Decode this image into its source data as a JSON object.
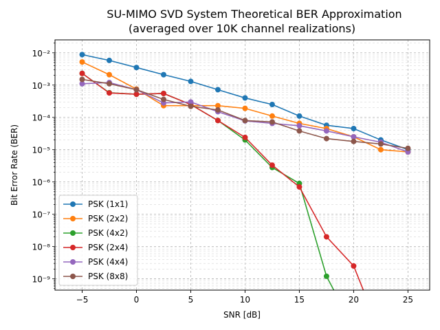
{
  "chart_data": {
    "type": "line",
    "title_line1": "SU-MIMO SVD System Theoretical BER Approximation",
    "title_line2": "(averaged over 10K channel realizations)",
    "xlabel": "SNR [dB]",
    "ylabel": "Bit Error Rate (BER)",
    "x_scale": "linear",
    "y_scale": "log",
    "xlim": [
      -7.5,
      27.0
    ],
    "ylim_exp": [
      -9.35,
      -1.6
    ],
    "x_ticks": [
      -5,
      0,
      5,
      10,
      15,
      20,
      25
    ],
    "x_tick_labels": [
      "−5",
      "0",
      "5",
      "10",
      "15",
      "20",
      "25"
    ],
    "y_ticks_exp": [
      -9,
      -8,
      -7,
      -6,
      -5,
      -4,
      -3,
      -2
    ],
    "y_tick_labels": [
      "10⁻⁹",
      "10⁻⁸",
      "10⁻⁷",
      "10⁻⁶",
      "10⁻⁵",
      "10⁻⁴",
      "10⁻³",
      "10⁻²"
    ],
    "grid": "major and minor, dashed",
    "legend_position": "lower-left",
    "x": [
      -5,
      -2.5,
      0,
      2.5,
      5,
      7.5,
      10,
      12.5,
      15,
      17.5,
      20,
      22.5,
      25
    ],
    "series": [
      {
        "name": "PSK (1x1)",
        "color": "#1f77b4",
        "values": [
          0.0088,
          0.0058,
          0.0035,
          0.0021,
          0.0013,
          0.00072,
          0.0004,
          0.00025,
          0.00011,
          5.7e-05,
          4.5e-05,
          2e-05,
          1e-05
        ]
      },
      {
        "name": "PSK (2x2)",
        "color": "#ff7f0e",
        "values": [
          0.0052,
          0.0021,
          0.00075,
          0.00023,
          0.00023,
          0.00023,
          0.00019,
          0.00011,
          6.5e-05,
          4.5e-05,
          2.5e-05,
          1e-05,
          8.5e-06
        ]
      },
      {
        "name": "PSK (4x2)",
        "color": "#2ca02c",
        "values": [
          0.0023,
          0.00058,
          0.00052,
          0.00055,
          0.00025,
          8e-05,
          2e-05,
          2.8e-06,
          9e-07,
          1.2e-09,
          3e-11,
          null,
          null
        ]
      },
      {
        "name": "PSK (2x4)",
        "color": "#d62728",
        "values": [
          0.0023,
          0.00057,
          0.00052,
          0.00055,
          0.00025,
          8e-05,
          2.4e-05,
          3.3e-06,
          7e-07,
          2e-08,
          2.5e-09,
          2e-11,
          null
        ]
      },
      {
        "name": "PSK (4x4)",
        "color": "#9467bd",
        "values": [
          0.0011,
          0.0012,
          0.00072,
          0.00028,
          0.0003,
          0.00015,
          7.8e-05,
          6.5e-05,
          5.5e-05,
          3.8e-05,
          2.5e-05,
          1.7e-05,
          8.5e-06
        ]
      },
      {
        "name": "PSK (8x8)",
        "color": "#8c564b",
        "values": [
          0.0015,
          0.0011,
          0.00072,
          0.00036,
          0.00022,
          0.00017,
          8e-05,
          7.2e-05,
          3.8e-05,
          2.2e-05,
          1.8e-05,
          1.5e-05,
          1.1e-05
        ]
      }
    ]
  }
}
